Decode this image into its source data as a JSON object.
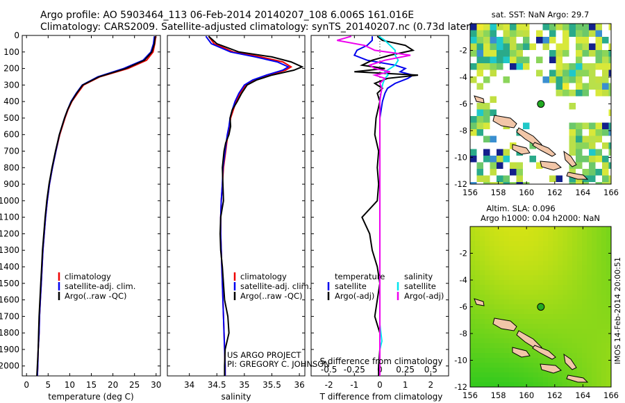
{
  "header": {
    "line1": "Argo profile: AO 5903464_113 06-Feb-2014 20140207_108 6.006S 161.016E",
    "line2": "Climatology: CARS2009. Satellite-adjusted climatology: synTS_20140207.nc (0.73d later)"
  },
  "colors": {
    "clim": "#ee0000",
    "sat": "#0000ee",
    "argo": "#000000",
    "sat_sal": "#00e5ee",
    "argo_sal": "#ee00ee"
  },
  "credits": {
    "project": "US ARGO PROJECT",
    "pi": "PI: GREGORY C. JOHNSON"
  },
  "stamp": "IMOS 14-Feb-2014 20:00:51",
  "chart_data": [
    {
      "type": "line",
      "name": "temperature-profile",
      "xlabel": "temperature (deg C)",
      "xlim": [
        -1,
        31
      ],
      "ylim": [
        2060,
        0
      ],
      "xticks": [
        0,
        5,
        10,
        15,
        20,
        25,
        30
      ],
      "yticks": [
        0,
        100,
        200,
        300,
        400,
        500,
        600,
        700,
        800,
        900,
        1000,
        1100,
        1200,
        1300,
        1400,
        1500,
        1600,
        1700,
        1800,
        1900,
        2000
      ],
      "legend": [
        "climatology",
        "satellite-adj. clim.",
        "Argo(..raw -QC)"
      ],
      "depth": [
        5,
        50,
        100,
        150,
        200,
        250,
        300,
        350,
        400,
        450,
        500,
        600,
        700,
        800,
        900,
        1000,
        1100,
        1200,
        1300,
        1400,
        1500,
        1600,
        1700,
        1800,
        1900,
        2000,
        2060
      ],
      "series": [
        {
          "name": "climatology",
          "color": "clim",
          "values": [
            29.9,
            29.7,
            29.3,
            27.8,
            23.5,
            17.0,
            13.2,
            11.8,
            10.5,
            9.6,
            8.9,
            7.7,
            6.8,
            6.0,
            5.3,
            4.8,
            4.4,
            4.1,
            3.8,
            3.6,
            3.4,
            3.2,
            3.0,
            2.9,
            2.7,
            2.6,
            2.5
          ]
        },
        {
          "name": "satellite-adj. clim.",
          "color": "sat",
          "values": [
            29.6,
            29.4,
            28.8,
            27.0,
            22.5,
            16.5,
            12.9,
            11.5,
            10.3,
            9.5,
            8.8,
            7.6,
            6.8,
            6.0,
            5.3,
            4.8,
            4.4,
            4.1,
            3.8,
            3.6,
            3.4,
            3.2,
            3.0,
            2.9,
            2.7,
            2.6,
            2.5
          ]
        },
        {
          "name": "Argo(..raw -QC)",
          "color": "argo",
          "values": [
            29.8,
            29.6,
            29.0,
            27.3,
            23.0,
            16.8,
            13.0,
            11.6,
            10.4,
            9.5,
            8.8,
            7.6,
            6.7,
            5.9,
            5.2,
            4.7,
            4.3,
            4.0,
            3.7,
            3.5,
            3.3,
            3.1,
            2.9,
            2.8,
            2.7,
            2.5,
            2.4
          ]
        }
      ]
    },
    {
      "type": "line",
      "name": "salinity-profile",
      "xlabel": "salinity",
      "xlim": [
        33.6,
        36.1
      ],
      "ylim": [
        2060,
        0
      ],
      "xticks": [
        34,
        34.5,
        35,
        35.5,
        36
      ],
      "legend": [
        "climatology",
        "satellite-adj. clim.",
        "Argo(..raw -QC)"
      ],
      "depth": [
        5,
        50,
        100,
        130,
        160,
        190,
        210,
        240,
        270,
        300,
        350,
        400,
        450,
        500,
        550,
        600,
        650,
        700,
        800,
        900,
        1000,
        1100,
        1200,
        1300,
        1400,
        1500,
        1600,
        1700,
        1800,
        1900,
        2000,
        2060
      ],
      "series": [
        {
          "name": "climatology",
          "color": "clim",
          "values": [
            34.35,
            34.45,
            34.8,
            35.3,
            35.7,
            35.85,
            35.75,
            35.45,
            35.2,
            35.02,
            34.92,
            34.85,
            34.8,
            34.75,
            34.73,
            34.7,
            34.68,
            34.66,
            34.62,
            34.6,
            34.58,
            34.57,
            34.57,
            34.58,
            34.59,
            34.6,
            34.61,
            34.62,
            34.63,
            34.64,
            34.65,
            34.65
          ]
        },
        {
          "name": "satellite-adj. clim.",
          "color": "sat",
          "values": [
            34.3,
            34.4,
            34.75,
            35.2,
            35.6,
            35.8,
            35.7,
            35.4,
            35.15,
            35.0,
            34.9,
            34.83,
            34.78,
            34.74,
            34.72,
            34.69,
            34.67,
            34.65,
            34.61,
            34.6,
            34.58,
            34.57,
            34.57,
            34.58,
            34.59,
            34.6,
            34.61,
            34.62,
            34.63,
            34.64,
            34.65,
            34.65
          ]
        },
        {
          "name": "Argo(..raw -QC)",
          "color": "argo",
          "values": [
            34.35,
            34.5,
            34.9,
            35.5,
            35.85,
            36.05,
            35.9,
            35.5,
            35.22,
            35.05,
            34.95,
            34.87,
            34.78,
            34.74,
            34.75,
            34.72,
            34.66,
            34.63,
            34.6,
            34.61,
            34.62,
            34.57,
            34.56,
            34.57,
            34.6,
            34.62,
            34.64,
            34.7,
            34.72,
            34.65,
            34.64,
            34.64
          ]
        }
      ]
    },
    {
      "type": "line",
      "name": "difference-profile",
      "xlabel_bottom": "T difference from climatology",
      "xlabel_top": "S difference from climatology",
      "xlim": [
        -2.7,
        2.7
      ],
      "ylim": [
        2060,
        0
      ],
      "xticks_T": [
        -2,
        -1,
        0,
        1,
        2
      ],
      "xticks_S": [
        -0.5,
        -0.25,
        0,
        0.25,
        0.5
      ],
      "legend_temperature": [
        "temperature",
        "satellite",
        "Argo(-adj)"
      ],
      "legend_salinity": [
        "salinity",
        "satellite",
        "Argo(-adj)"
      ],
      "depth": [
        5,
        30,
        60,
        90,
        120,
        150,
        180,
        200,
        220,
        240,
        260,
        290,
        320,
        350,
        400,
        500,
        600,
        700,
        800,
        900,
        1000,
        1100,
        1200,
        1300,
        1400,
        1500,
        1600,
        1700,
        1750,
        1800,
        1850,
        1900,
        2000,
        2060
      ],
      "series": [
        {
          "name": "T satellite",
          "color": "sat",
          "values": [
            -0.3,
            -0.3,
            -0.5,
            -0.9,
            -1.0,
            -0.5,
            0.6,
            1.0,
            0.8,
            1.3,
            1.1,
            0.6,
            0.3,
            0.2,
            0.1,
            0.0,
            0.0,
            0.0,
            0.0,
            0.0,
            0.0,
            0.0,
            0.0,
            0.0,
            0.0,
            0.0,
            0.0,
            0.0,
            0.0,
            0.0,
            0.0,
            0.0,
            0.0,
            0.0
          ]
        },
        {
          "name": "T Argo(-adj)",
          "color": "argo",
          "values": [
            -0.1,
            0.1,
            1.0,
            1.3,
            0.4,
            -0.3,
            -0.7,
            0.2,
            -1.0,
            1.5,
            0.3,
            -0.2,
            0.1,
            -0.1,
            0.0,
            -0.15,
            -0.2,
            -0.05,
            -0.1,
            -0.05,
            -0.1,
            -0.7,
            -0.4,
            -0.3,
            -0.1,
            0.0,
            -0.1,
            -0.2,
            -0.1,
            0.0,
            0.0,
            0.0,
            -0.05,
            -0.05
          ]
        },
        {
          "name": "S satellite",
          "color": "sat_sal",
          "values": [
            -0.01,
            0.05,
            0.1,
            0.15,
            0.15,
            0.18,
            0.15,
            0.1,
            0.05,
            0.08,
            0.05,
            0.03,
            0.02,
            0.01,
            0.0,
            0.0,
            0.0,
            0.0,
            0.0,
            0.0,
            0.0,
            0.0,
            0.0,
            0.0,
            0.0,
            0.0,
            0.0,
            0.0,
            0.0,
            0.01,
            0.02,
            0.0,
            0.0,
            0.0
          ]
        },
        {
          "name": "S Argo(-adj)",
          "color": "argo_sal",
          "values": [
            -0.28,
            -0.42,
            -0.15,
            -0.05,
            0.3,
            0.05,
            -0.1,
            -0.05,
            0.1,
            -0.05,
            0.05,
            0.0,
            0.02,
            0.01,
            0.0,
            0.0,
            0.0,
            0.0,
            0.0,
            0.0,
            0.0,
            0.0,
            0.0,
            0.0,
            0.0,
            0.0,
            0.0,
            0.0,
            0.0,
            0.0,
            0.0,
            0.0,
            0.0,
            0.0
          ]
        }
      ]
    },
    {
      "type": "heatmap",
      "name": "sst-map",
      "title": "sat. SST: NaN Argo: 29.7",
      "xlim": [
        156,
        166
      ],
      "ylim": [
        -12,
        0
      ],
      "xticks": [
        156,
        158,
        160,
        162,
        164,
        166
      ],
      "yticks": [
        -2,
        -4,
        -6,
        -8,
        -10,
        -12
      ],
      "marker": {
        "lon": 161.016,
        "lat": -6.006
      }
    },
    {
      "type": "heatmap",
      "name": "sla-map",
      "title_line1": "Altim. SLA: 0.096",
      "title_line2": "Argo h1000: 0.04 h2000: NaN",
      "xlim": [
        156,
        166
      ],
      "ylim": [
        -12,
        0
      ],
      "xticks": [
        156,
        158,
        160,
        162,
        164,
        166
      ],
      "yticks": [
        -2,
        -4,
        -6,
        -8,
        -10,
        -12
      ],
      "marker": {
        "lon": 161.016,
        "lat": -6.006
      }
    }
  ]
}
